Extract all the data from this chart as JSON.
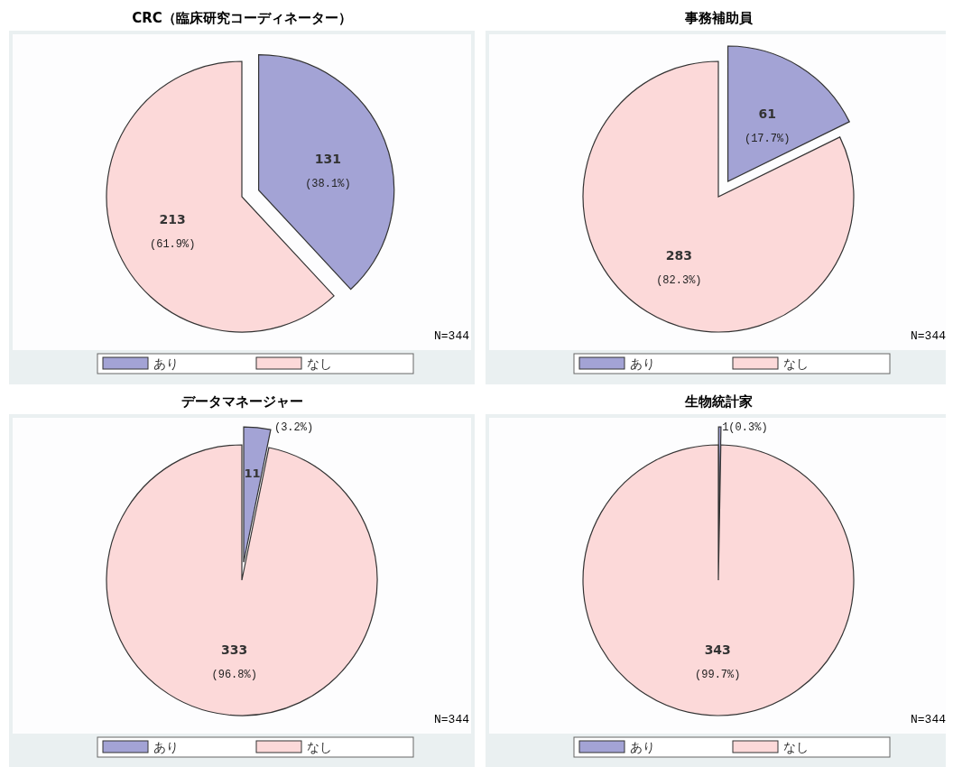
{
  "chart_data": [
    {
      "type": "pie",
      "title": "CRC（臨床研究コーディネーター）",
      "categories": [
        "あり",
        "なし"
      ],
      "values": [
        131,
        213
      ],
      "value_labels": [
        "131\n(38.1%)",
        "213\n(61.9%)"
      ],
      "colors": [
        "#a3a3d5",
        "#fcd9d9"
      ],
      "legend": "bottom",
      "annotations": [
        "N=344"
      ]
    },
    {
      "type": "pie",
      "title": "事務補助員",
      "categories": [
        "あり",
        "なし"
      ],
      "values": [
        61,
        283
      ],
      "value_labels": [
        "61\n(17.7%)",
        "283\n(82.3%)"
      ],
      "colors": [
        "#a3a3d5",
        "#fcd9d9"
      ],
      "legend": "bottom",
      "annotations": [
        "N=344"
      ]
    },
    {
      "type": "pie",
      "title": "データマネージャー",
      "categories": [
        "あり",
        "なし"
      ],
      "values": [
        11,
        333
      ],
      "value_labels": [
        "11\n(3.2%)",
        "333\n(96.8%)"
      ],
      "colors": [
        "#a3a3d5",
        "#fcd9d9"
      ],
      "legend": "bottom",
      "annotations": [
        "N=344"
      ]
    },
    {
      "type": "pie",
      "title": "生物統計家",
      "categories": [
        "あり",
        "なし"
      ],
      "values": [
        1,
        343
      ],
      "value_labels": [
        "1(0.3%)",
        "343\n(99.7%)"
      ],
      "colors": [
        "#a3a3d5",
        "#fcd9d9"
      ],
      "legend": "bottom",
      "annotations": [
        "N=344"
      ]
    }
  ]
}
